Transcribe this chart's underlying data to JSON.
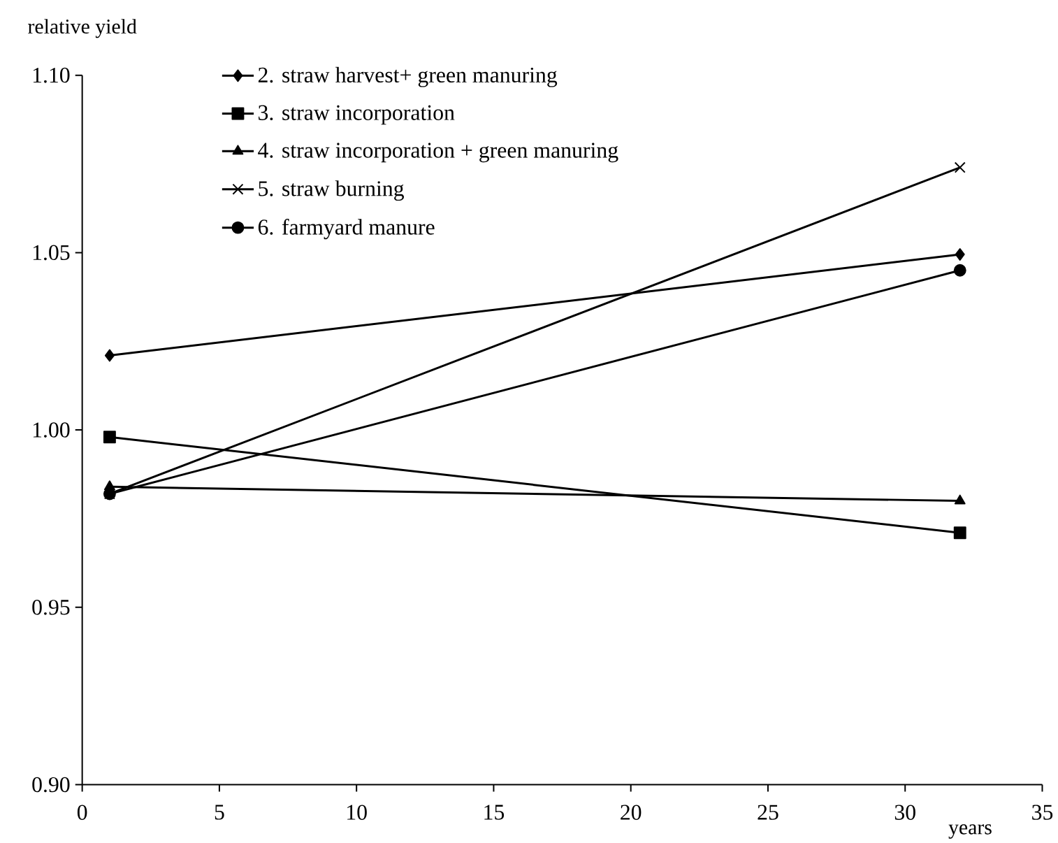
{
  "chart_data": {
    "type": "line",
    "xlabel": "years",
    "ylabel": "relative yield",
    "xlim": [
      0,
      35
    ],
    "xticks": [
      0,
      5,
      10,
      15,
      20,
      25,
      30,
      35
    ],
    "ylim": [
      0.9,
      1.1
    ],
    "yticks": [
      {
        "value": 0.9,
        "label": "0.90"
      },
      {
        "value": 0.95,
        "label": "0.95"
      },
      {
        "value": 1.0,
        "label": "1.00"
      },
      {
        "value": 1.05,
        "label": "1.05"
      },
      {
        "value": 1.1,
        "label": "1.10"
      }
    ],
    "x": [
      1,
      32
    ],
    "grid": false,
    "legend": "top left",
    "line_style": "solid",
    "series": [
      {
        "name": "2. straw harvest+ green manuring",
        "color": "#000000",
        "marker": "diamond",
        "values": [
          1.021,
          1.0495
        ]
      },
      {
        "name": "3. straw incorporation",
        "color": "#000000",
        "marker": "square",
        "values": [
          0.998,
          0.971
        ]
      },
      {
        "name": "4. straw incorporation + green manuring",
        "color": "#000000",
        "marker": "triangle",
        "values": [
          0.984,
          0.98
        ]
      },
      {
        "name": "5. straw burning",
        "color": "#000000",
        "marker": "cross",
        "values": [
          0.982,
          1.074
        ]
      },
      {
        "name": "6. farmyard manure",
        "color": "#000000",
        "marker": "circle",
        "values": [
          0.982,
          1.045
        ]
      }
    ]
  }
}
